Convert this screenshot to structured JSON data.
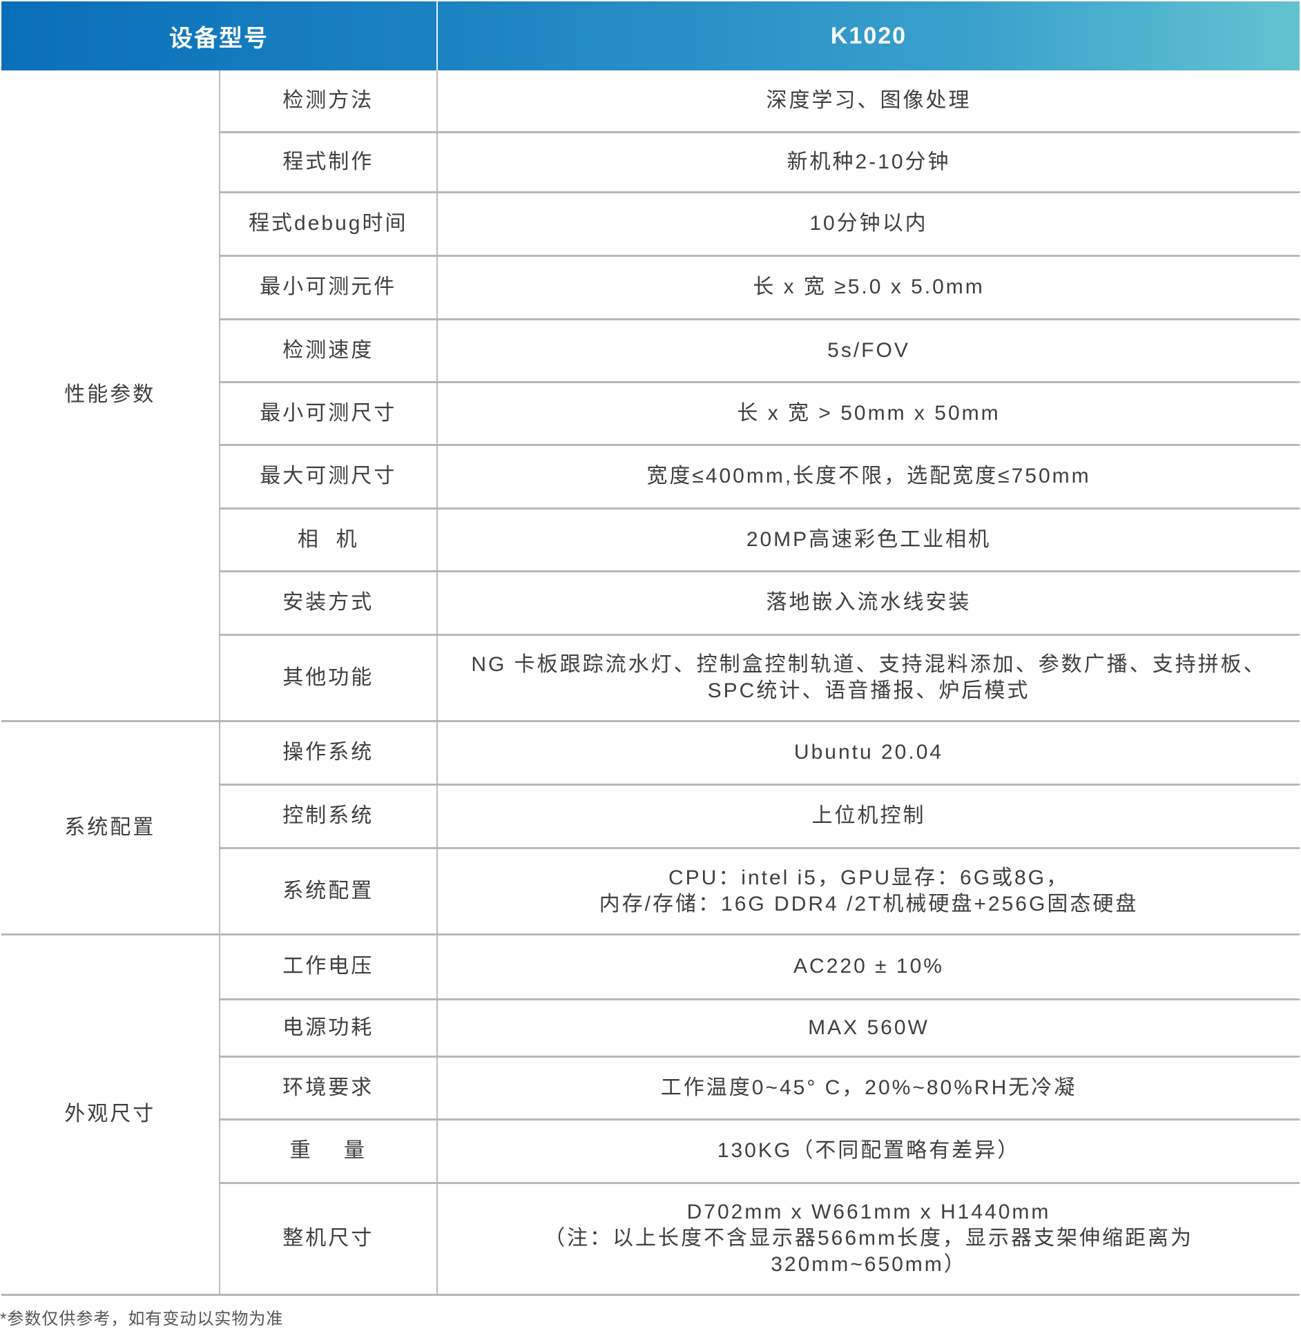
{
  "header": {
    "model_label": "设备型号",
    "model_value": "K1020"
  },
  "header_colors": {
    "start": "#0a6fb9",
    "end": "#63c3d0"
  },
  "groups": [
    {
      "name": "性能参数",
      "rows": [
        {
          "param": "检测方法",
          "value": [
            "深度学习、图像处理"
          ]
        },
        {
          "param": "程式制作",
          "value": [
            "新机种2-10分钟"
          ]
        },
        {
          "param": "程式debug时间",
          "value": [
            "10分钟以内"
          ]
        },
        {
          "param": "最小可测元件",
          "value": [
            "长 x 宽 ≥5.0 x 5.0mm"
          ]
        },
        {
          "param": "检测速度",
          "value": [
            "5s/FOV"
          ]
        },
        {
          "param": "最小可测尺寸",
          "value": [
            "长 x 宽 > 50mm x 50mm"
          ]
        },
        {
          "param": "最大可测尺寸",
          "value": [
            "宽度≤400mm,长度不限，选配宽度≤750mm"
          ]
        },
        {
          "param": "相  机",
          "value": [
            "20MP高速彩色工业相机"
          ]
        },
        {
          "param": "安装方式",
          "value": [
            "落地嵌入流水线安装"
          ]
        },
        {
          "param": "其他功能",
          "value": [
            "NG 卡板跟踪流水灯、控制盒控制轨道、支持混料添加、参数广播、支持拼板、",
            "SPC统计、语音播报、炉后模式"
          ]
        }
      ]
    },
    {
      "name": "系统配置",
      "rows": [
        {
          "param": "操作系统",
          "value": [
            "Ubuntu 20.04"
          ]
        },
        {
          "param": "控制系统",
          "value": [
            "上位机控制"
          ]
        },
        {
          "param": "系统配置",
          "value": [
            "CPU：intel i5，GPU显存：6G或8G，",
            "内存/存储：16G DDR4 /2T机械硬盘+256G固态硬盘"
          ]
        }
      ]
    },
    {
      "name": "外观尺寸",
      "rows": [
        {
          "param": "工作电压",
          "value": [
            "AC220 ± 10%"
          ]
        },
        {
          "param": "电源功耗",
          "value": [
            "MAX 560W"
          ]
        },
        {
          "param": "环境要求",
          "value": [
            "工作温度0~45° C，20%~80%RH无冷凝"
          ]
        },
        {
          "param": "重    量",
          "value": [
            "130KG（不同配置略有差异）"
          ]
        },
        {
          "param": "整机尺寸",
          "value": [
            "D702mm x W661mm x H1440mm",
            "（注：以上长度不含显示器566mm长度，显示器支架伸缩距离为",
            "320mm~650mm）"
          ]
        }
      ]
    }
  ],
  "footnote": "*参数仅供参考，如有变动以实物为准"
}
